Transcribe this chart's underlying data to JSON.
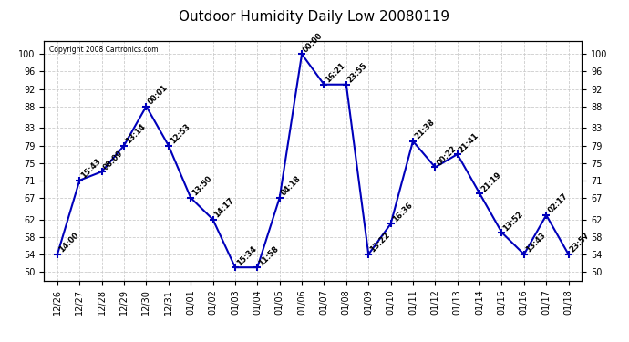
{
  "title": "Outdoor Humidity Daily Low 20080119",
  "copyright": "Copyright 2008 Cartronics.com",
  "dates": [
    "12/26",
    "12/27",
    "12/28",
    "12/29",
    "12/30",
    "12/31",
    "01/01",
    "01/02",
    "01/03",
    "01/04",
    "01/05",
    "01/06",
    "01/07",
    "01/08",
    "01/09",
    "01/10",
    "01/11",
    "01/12",
    "01/13",
    "01/14",
    "01/15",
    "01/16",
    "01/17",
    "01/18"
  ],
  "values": [
    54,
    71,
    73,
    79,
    88,
    79,
    67,
    62,
    51,
    51,
    67,
    100,
    93,
    93,
    54,
    61,
    80,
    74,
    77,
    68,
    59,
    54,
    63,
    54
  ],
  "times": [
    "14:00",
    "15:43",
    "08:09",
    "13:14",
    "00:01",
    "12:53",
    "13:50",
    "14:17",
    "15:34",
    "11:58",
    "04:18",
    "00:00",
    "16:21",
    "23:55",
    "13:22",
    "16:36",
    "21:38",
    "00:22",
    "21:41",
    "21:19",
    "13:52",
    "13:43",
    "02:17",
    "23:57"
  ],
  "line_color": "#0000bb",
  "bg_color": "#ffffff",
  "grid_color": "#cccccc",
  "title_fontsize": 11,
  "label_fontsize": 7,
  "annot_fontsize": 6,
  "yticks": [
    50,
    54,
    58,
    62,
    67,
    71,
    75,
    79,
    83,
    88,
    92,
    96,
    100
  ],
  "ylim": [
    48,
    103
  ],
  "xlim": [
    -0.6,
    23.6
  ]
}
